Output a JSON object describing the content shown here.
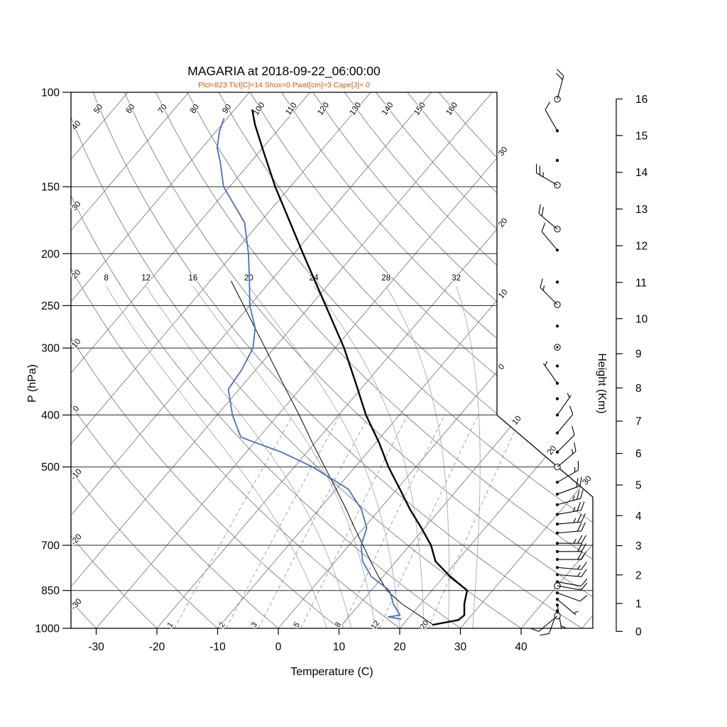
{
  "title": "MAGARIA at 2018-09-22_06:00:00",
  "subtitle": "Plcl=823 Tlcl[C]=14 Shox=0 Pwat[cm]=3 Cape[J]= 0",
  "subtitle_color": "#c85a00",
  "axes": {
    "pressure": {
      "label": "P (hPa)",
      "ticks": [
        100,
        150,
        200,
        250,
        300,
        400,
        500,
        700,
        850,
        1000
      ]
    },
    "temperature": {
      "label": "Temperature (C)",
      "ticks": [
        -30,
        -20,
        -10,
        0,
        10,
        20,
        30,
        40
      ]
    },
    "height": {
      "label": "Height (Km)",
      "ticks": [
        0,
        1,
        2,
        3,
        4,
        5,
        6,
        7,
        8,
        9,
        10,
        11,
        12,
        13,
        14,
        15,
        16
      ]
    }
  },
  "background_labels": {
    "dry_adiabats_top": [
      "50",
      "60",
      "70",
      "80",
      "90",
      "100",
      "110",
      "120",
      "130",
      "140",
      "150",
      "160"
    ],
    "dry_adiabats_left": [
      "40",
      "30",
      "20",
      "10",
      "0",
      "-10",
      "-20",
      "-30"
    ],
    "isotherms_right": [
      "30",
      "20",
      "10",
      "0"
    ],
    "isotherms_right_values": [
      -30,
      -20,
      -10,
      0
    ],
    "isotherms_diagonal": [
      "10",
      "20",
      "30"
    ],
    "isotherms_diagonal_values": [
      10,
      20,
      30
    ],
    "moist_adiabats": [
      "8",
      "12",
      "16",
      "20",
      "24",
      "28",
      "32"
    ],
    "mixing_ratio": [
      "1",
      "2",
      "3",
      "5",
      "8",
      "12",
      "20"
    ]
  },
  "chart_data": {
    "type": "skewt_log_p",
    "station": "MAGARIA",
    "datetime": "2018-09-22_06:00:00",
    "pressure_range_hpa": [
      100,
      1000
    ],
    "temp_axis_range_c": [
      -30,
      40
    ],
    "height_axis_km": [
      0,
      16
    ],
    "indices": {
      "Plcl": 823,
      "Tlcl_C": 14,
      "Shox": 0,
      "Pwat_cm": 3,
      "Cape_J": 0
    },
    "temperature_profile": {
      "name": "temperature",
      "color": "#000000",
      "points": [
        [
          985,
          25.0
        ],
        [
          965,
          28.5
        ],
        [
          945,
          28.8
        ],
        [
          900,
          27.2
        ],
        [
          850,
          25.8
        ],
        [
          800,
          21.0
        ],
        [
          750,
          16.5
        ],
        [
          700,
          13.5
        ],
        [
          650,
          9.5
        ],
        [
          600,
          5.0
        ],
        [
          550,
          0.5
        ],
        [
          500,
          -4.5
        ],
        [
          450,
          -9.5
        ],
        [
          400,
          -15.5
        ],
        [
          350,
          -21.5
        ],
        [
          300,
          -28.5
        ],
        [
          250,
          -37.5
        ],
        [
          200,
          -48.5
        ],
        [
          175,
          -55.0
        ],
        [
          150,
          -62.5
        ],
        [
          130,
          -69.0
        ],
        [
          115,
          -74.5
        ],
        [
          108,
          -77.0
        ]
      ]
    },
    "dewpoint_profile": {
      "name": "dewpoint",
      "color": "#4a6fc4",
      "points": [
        [
          961,
          18.9
        ],
        [
          952,
          16.5
        ],
        [
          945,
          18.2
        ],
        [
          900,
          15.5
        ],
        [
          850,
          13.0
        ],
        [
          800,
          8.0
        ],
        [
          750,
          4.5
        ],
        [
          700,
          2.0
        ],
        [
          650,
          0.5
        ],
        [
          600,
          -3.0
        ],
        [
          550,
          -8.0
        ],
        [
          500,
          -17.0
        ],
        [
          470,
          -24.0
        ],
        [
          440,
          -33.0
        ],
        [
          400,
          -37.5
        ],
        [
          358,
          -41.8
        ],
        [
          330,
          -42.3
        ],
        [
          300,
          -43.5
        ],
        [
          275,
          -46.0
        ],
        [
          250,
          -50.0
        ],
        [
          225,
          -53.5
        ],
        [
          200,
          -57.5
        ],
        [
          175,
          -62.5
        ],
        [
          150,
          -71.0
        ],
        [
          135,
          -75.0
        ],
        [
          127,
          -77.5
        ],
        [
          118,
          -79.5
        ],
        [
          112,
          -80.5
        ]
      ]
    },
    "parcel_profile": {
      "name": "parcel",
      "color": "#000000",
      "points": [
        [
          985,
          25.0
        ],
        [
          950,
          21.8
        ],
        [
          900,
          16.9
        ],
        [
          850,
          12.6
        ],
        [
          823,
          10.8
        ],
        [
          800,
          9.2
        ],
        [
          750,
          5.8
        ],
        [
          700,
          2.3
        ],
        [
          650,
          -1.5
        ],
        [
          600,
          -5.5
        ],
        [
          550,
          -10.0
        ],
        [
          500,
          -15.0
        ],
        [
          450,
          -20.5
        ],
        [
          400,
          -26.5
        ],
        [
          350,
          -33.5
        ],
        [
          300,
          -41.5
        ],
        [
          250,
          -51.0
        ],
        [
          225,
          -56.5
        ]
      ]
    },
    "wind_barbs": {
      "levels": [
        {
          "p": 103,
          "marker": "circle",
          "dir_deg": 15,
          "speed_kt": 20
        },
        {
          "p": 118,
          "marker": "dot",
          "dir_deg": 330,
          "speed_kt": 10
        },
        {
          "p": 134,
          "marker": "dot",
          "dir_deg": 0,
          "speed_kt": 0
        },
        {
          "p": 149,
          "marker": "circle",
          "dir_deg": 300,
          "speed_kt": 25
        },
        {
          "p": 180,
          "marker": "circle",
          "dir_deg": 310,
          "speed_kt": 20
        },
        {
          "p": 197,
          "marker": "dot",
          "dir_deg": 320,
          "speed_kt": 10
        },
        {
          "p": 226,
          "marker": "dot",
          "dir_deg": 0,
          "speed_kt": 0
        },
        {
          "p": 249,
          "marker": "circle",
          "dir_deg": 315,
          "speed_kt": 15
        },
        {
          "p": 273,
          "marker": "dot",
          "dir_deg": 0,
          "speed_kt": 0
        },
        {
          "p": 299,
          "marker": "circle-dot",
          "dir_deg": 0,
          "speed_kt": 0
        },
        {
          "p": 324,
          "marker": "dot",
          "dir_deg": 0,
          "speed_kt": 0
        },
        {
          "p": 349,
          "marker": "dot",
          "dir_deg": 325,
          "speed_kt": 5
        },
        {
          "p": 373,
          "marker": "dot",
          "dir_deg": 0,
          "speed_kt": 0
        },
        {
          "p": 400,
          "marker": "dot",
          "dir_deg": 35,
          "speed_kt": 5
        },
        {
          "p": 432,
          "marker": "dot",
          "dir_deg": 40,
          "speed_kt": 10
        },
        {
          "p": 469,
          "marker": "dot",
          "dir_deg": 45,
          "speed_kt": 10
        },
        {
          "p": 500,
          "marker": "circle",
          "dir_deg": 50,
          "speed_kt": 15
        },
        {
          "p": 534,
          "marker": "dot",
          "dir_deg": 60,
          "speed_kt": 15
        },
        {
          "p": 562,
          "marker": "dot",
          "dir_deg": 70,
          "speed_kt": 20
        },
        {
          "p": 588,
          "marker": "dot",
          "dir_deg": 75,
          "speed_kt": 25
        },
        {
          "p": 613,
          "marker": "dot",
          "dir_deg": 80,
          "speed_kt": 25
        },
        {
          "p": 639,
          "marker": "dot",
          "dir_deg": 85,
          "speed_kt": 25
        },
        {
          "p": 664,
          "marker": "dot",
          "dir_deg": 85,
          "speed_kt": 20
        },
        {
          "p": 694,
          "marker": "dot",
          "dir_deg": 90,
          "speed_kt": 25
        },
        {
          "p": 719,
          "marker": "dot",
          "dir_deg": 90,
          "speed_kt": 20
        },
        {
          "p": 744,
          "marker": "dot",
          "dir_deg": 90,
          "speed_kt": 20
        },
        {
          "p": 770,
          "marker": "dot",
          "dir_deg": 95,
          "speed_kt": 15
        },
        {
          "p": 794,
          "marker": "dot",
          "dir_deg": 95,
          "speed_kt": 15
        },
        {
          "p": 819,
          "marker": "dot",
          "dir_deg": 100,
          "speed_kt": 10
        },
        {
          "p": 833,
          "marker": "circle",
          "dir_deg": 100,
          "speed_kt": 10
        },
        {
          "p": 859,
          "marker": "dot",
          "dir_deg": 110,
          "speed_kt": 10
        },
        {
          "p": 883,
          "marker": "dot",
          "dir_deg": 130,
          "speed_kt": 5
        },
        {
          "p": 905,
          "marker": "dot",
          "dir_deg": 170,
          "speed_kt": 5
        },
        {
          "p": 928,
          "marker": "dot",
          "dir_deg": 200,
          "speed_kt": 10
        },
        {
          "p": 948,
          "marker": "circle",
          "dir_deg": 230,
          "speed_kt": 10
        }
      ]
    }
  }
}
